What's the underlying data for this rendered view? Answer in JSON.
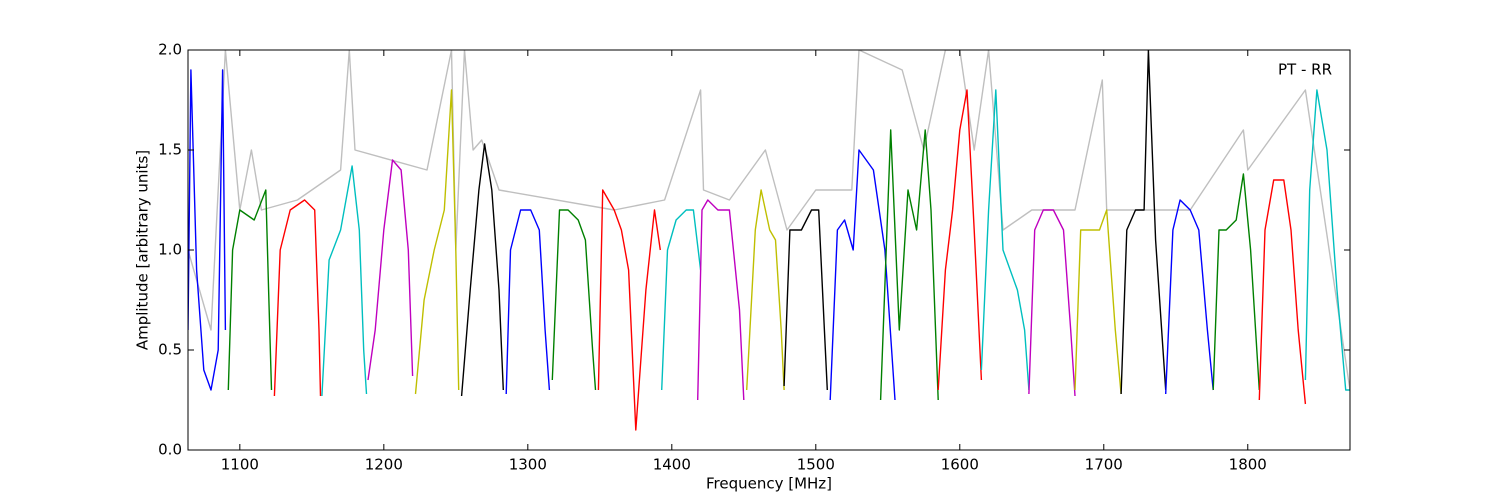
{
  "chart_data": {
    "type": "line",
    "xlabel": "Frequency [MHz]",
    "ylabel": "Amplitude [arbitrary units]",
    "annotation": "PT - RR",
    "xlim": [
      1064,
      1871
    ],
    "ylim": [
      0,
      2
    ],
    "xticks": [
      1100,
      1200,
      1300,
      1400,
      1500,
      1600,
      1700,
      1800
    ],
    "yticks": [
      {
        "value": 0,
        "label": "0.0"
      },
      {
        "value": 0.5,
        "label": "0.5"
      },
      {
        "value": 1,
        "label": "1.0"
      },
      {
        "value": 1.5,
        "label": "1.5"
      },
      {
        "value": 2,
        "label": "2.0"
      }
    ],
    "series": [
      {
        "color": "#bfbfbf",
        "x": [
          1064,
          1080,
          1090,
          1100,
          1108,
          1115,
          1140,
          1170,
          1176,
          1180,
          1230,
          1247,
          1250,
          1256,
          1262,
          1268,
          1280,
          1360,
          1395,
          1420,
          1422,
          1440,
          1465,
          1480,
          1500,
          1525,
          1530,
          1560,
          1575,
          1590,
          1600,
          1610,
          1620,
          1630,
          1650,
          1680,
          1699,
          1702,
          1720,
          1760,
          1797,
          1800,
          1840,
          1871
        ],
        "values": [
          1.0,
          0.6,
          2.0,
          1.2,
          1.5,
          1.2,
          1.25,
          1.4,
          2.0,
          1.5,
          1.4,
          2.0,
          1.0,
          2.0,
          1.5,
          1.55,
          1.3,
          1.2,
          1.25,
          1.8,
          1.3,
          1.25,
          1.5,
          1.1,
          1.3,
          1.3,
          2.0,
          1.9,
          1.5,
          2.0,
          2.0,
          1.5,
          2.0,
          1.1,
          1.2,
          1.2,
          1.85,
          1.2,
          1.2,
          1.2,
          1.6,
          1.4,
          1.8,
          0.3
        ]
      },
      {
        "color": "#0000ff",
        "x": [
          1064,
          1066,
          1070,
          1075,
          1080,
          1085,
          1088,
          1090
        ],
        "values": [
          0.6,
          1.9,
          0.9,
          0.4,
          0.3,
          0.5,
          1.9,
          0.6
        ]
      },
      {
        "color": "#008000",
        "x": [
          1092,
          1095,
          1100,
          1110,
          1118,
          1120,
          1122
        ],
        "values": [
          0.3,
          1.0,
          1.2,
          1.15,
          1.3,
          0.8,
          0.3
        ]
      },
      {
        "color": "#ff0000",
        "x": [
          1124,
          1128,
          1135,
          1145,
          1152,
          1155,
          1156
        ],
        "values": [
          0.27,
          1.0,
          1.2,
          1.25,
          1.2,
          0.6,
          0.27
        ]
      },
      {
        "color": "#00bfbf",
        "x": [
          1157,
          1162,
          1170,
          1178,
          1183,
          1186,
          1188
        ],
        "values": [
          0.27,
          0.95,
          1.1,
          1.42,
          1.1,
          0.5,
          0.28
        ]
      },
      {
        "color": "#bf00bf",
        "x": [
          1189,
          1194,
          1200,
          1206,
          1212,
          1217,
          1220
        ],
        "values": [
          0.35,
          0.6,
          1.1,
          1.45,
          1.4,
          1.0,
          0.37
        ]
      },
      {
        "color": "#bfbf00",
        "x": [
          1222,
          1228,
          1235,
          1242,
          1247,
          1250,
          1252
        ],
        "values": [
          0.28,
          0.75,
          1.0,
          1.2,
          1.8,
          1.0,
          0.3
        ]
      },
      {
        "color": "#000000",
        "x": [
          1254,
          1260,
          1266,
          1270,
          1275,
          1280,
          1283
        ],
        "values": [
          0.27,
          0.8,
          1.3,
          1.53,
          1.3,
          0.8,
          0.3
        ]
      },
      {
        "color": "#0000ff",
        "x": [
          1285,
          1288,
          1295,
          1302,
          1308,
          1312,
          1315
        ],
        "values": [
          0.28,
          1.0,
          1.2,
          1.2,
          1.1,
          0.6,
          0.3
        ]
      },
      {
        "color": "#008000",
        "x": [
          1317,
          1322,
          1328,
          1335,
          1340,
          1345,
          1347
        ],
        "values": [
          0.35,
          1.2,
          1.2,
          1.15,
          1.05,
          0.5,
          0.3
        ]
      },
      {
        "color": "#ff0000",
        "x": [
          1349,
          1352,
          1360,
          1365,
          1370,
          1375,
          1382,
          1388,
          1392
        ],
        "values": [
          0.3,
          1.3,
          1.2,
          1.1,
          0.9,
          0.1,
          0.8,
          1.2,
          1.0
        ]
      },
      {
        "color": "#00bfbf",
        "x": [
          1393,
          1397,
          1403,
          1410,
          1415,
          1420
        ],
        "values": [
          0.3,
          1.0,
          1.15,
          1.2,
          1.2,
          0.9
        ]
      },
      {
        "color": "#bf00bf",
        "x": [
          1418,
          1421,
          1425,
          1432,
          1440,
          1447,
          1450
        ],
        "values": [
          0.25,
          1.2,
          1.25,
          1.2,
          1.2,
          0.7,
          0.25
        ]
      },
      {
        "color": "#bfbf00",
        "x": [
          1452,
          1458,
          1462,
          1468,
          1472,
          1476,
          1478
        ],
        "values": [
          0.3,
          1.1,
          1.3,
          1.1,
          1.05,
          0.6,
          0.3
        ]
      },
      {
        "color": "#000000",
        "x": [
          1478,
          1482,
          1490,
          1497,
          1502,
          1506,
          1508
        ],
        "values": [
          0.32,
          1.1,
          1.1,
          1.2,
          1.2,
          0.6,
          0.3
        ]
      },
      {
        "color": "#0000ff",
        "x": [
          1510,
          1515,
          1520,
          1526,
          1530,
          1540,
          1548,
          1555
        ],
        "values": [
          0.25,
          1.1,
          1.15,
          1.0,
          1.5,
          1.4,
          1.0,
          0.25
        ]
      },
      {
        "color": "#008000",
        "x": [
          1545,
          1552,
          1558,
          1564,
          1570,
          1576,
          1580,
          1585
        ],
        "values": [
          0.25,
          1.6,
          0.6,
          1.3,
          1.1,
          1.6,
          1.2,
          0.25
        ]
      },
      {
        "color": "#ff0000",
        "x": [
          1585,
          1590,
          1595,
          1600,
          1605,
          1610,
          1615
        ],
        "values": [
          0.3,
          0.9,
          1.2,
          1.6,
          1.8,
          1.1,
          0.35
        ]
      },
      {
        "color": "#00bfbf",
        "x": [
          1615,
          1620,
          1625,
          1630,
          1640,
          1645,
          1648
        ],
        "values": [
          0.4,
          1.2,
          1.8,
          1.0,
          0.8,
          0.6,
          0.3
        ]
      },
      {
        "color": "#bf00bf",
        "x": [
          1648,
          1652,
          1658,
          1665,
          1672,
          1677,
          1680
        ],
        "values": [
          0.28,
          1.1,
          1.2,
          1.2,
          1.1,
          0.6,
          0.27
        ]
      },
      {
        "color": "#bfbf00",
        "x": [
          1680,
          1684,
          1690,
          1697,
          1702,
          1708,
          1712
        ],
        "values": [
          0.3,
          1.1,
          1.1,
          1.1,
          1.2,
          0.6,
          0.28
        ]
      },
      {
        "color": "#000000",
        "x": [
          1712,
          1716,
          1722,
          1728,
          1731,
          1736,
          1743
        ],
        "values": [
          0.28,
          1.1,
          1.2,
          1.2,
          2.0,
          1.05,
          0.3
        ]
      },
      {
        "color": "#0000ff",
        "x": [
          1743,
          1748,
          1753,
          1760,
          1766,
          1772,
          1776
        ],
        "values": [
          0.28,
          1.1,
          1.25,
          1.2,
          1.1,
          0.6,
          0.3
        ]
      },
      {
        "color": "#008000",
        "x": [
          1776,
          1780,
          1785,
          1792,
          1797,
          1802,
          1808
        ],
        "values": [
          0.3,
          1.1,
          1.1,
          1.15,
          1.38,
          1.0,
          0.3
        ]
      },
      {
        "color": "#ff0000",
        "x": [
          1808,
          1812,
          1818,
          1825,
          1830,
          1835,
          1840
        ],
        "values": [
          0.25,
          1.1,
          1.35,
          1.35,
          1.1,
          0.6,
          0.23
        ]
      },
      {
        "color": "#00bfbf",
        "x": [
          1840,
          1843,
          1848,
          1855,
          1862,
          1868,
          1871
        ],
        "values": [
          0.35,
          1.3,
          1.8,
          1.5,
          0.8,
          0.3,
          0.3
        ]
      }
    ]
  }
}
